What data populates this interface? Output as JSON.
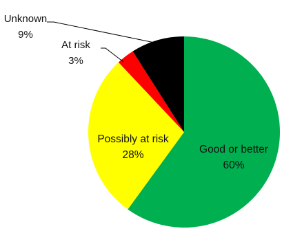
{
  "chart_data": {
    "type": "pie",
    "start": "top",
    "direction": "clockwise",
    "slices": [
      {
        "label": "Good or better",
        "value": 60,
        "pct_label": "60%",
        "color": "#00b050",
        "label_placement": "inside"
      },
      {
        "label": "Possibly at risk",
        "value": 28,
        "pct_label": "28%",
        "color": "#ffff00",
        "label_placement": "inside"
      },
      {
        "label": "At risk",
        "value": 3,
        "pct_label": "3%",
        "color": "#ff0000",
        "label_placement": "outside"
      },
      {
        "label": "Unknown",
        "value": 9,
        "pct_label": "9%",
        "color": "#000000",
        "label_placement": "outside"
      }
    ]
  }
}
